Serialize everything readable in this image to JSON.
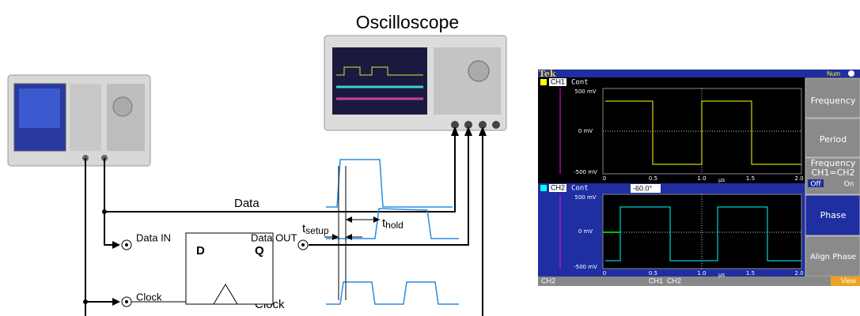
{
  "diagram": {
    "oscilloscope": "Oscilloscope",
    "data_label": "Data",
    "clock_label": "Clock",
    "setup": {
      "t": "t",
      "sub": "setup"
    },
    "hold": {
      "t": "t",
      "sub": "hold"
    },
    "flip_flop": {
      "d": "D",
      "q": "Q",
      "data_in": "Data IN",
      "data_out": "Data OUT",
      "clock": "Clock"
    }
  },
  "screen": {
    "brand": "Tek",
    "status": "Num",
    "ch1": {
      "name": "CH1",
      "mode": "Cont",
      "y_labels": [
        "500 mV",
        "0 mV",
        "-500 mV"
      ],
      "x_labels": [
        "0",
        "0.5",
        "1.0",
        "1.5",
        "2.0"
      ],
      "unit": "µs"
    },
    "ch2": {
      "name": "CH2",
      "mode": "Cont",
      "phase": "-60.0°",
      "y_labels": [
        "500 mV",
        "0 mV",
        "-500 mV"
      ],
      "x_labels": [
        "0",
        "0.5",
        "1.0",
        "1.5",
        "2.0"
      ],
      "unit": "µs"
    },
    "menu": {
      "frequency": "Frequency",
      "period": "Period",
      "freq_link": {
        "line1": "Frequency",
        "line2": "CH1=CH2",
        "off": "Off",
        "on": "On"
      },
      "phase": "Phase",
      "align": "Align Phase"
    },
    "bottom": {
      "left": "CH2",
      "middle": "CH1  CH2",
      "right": "View"
    }
  }
}
